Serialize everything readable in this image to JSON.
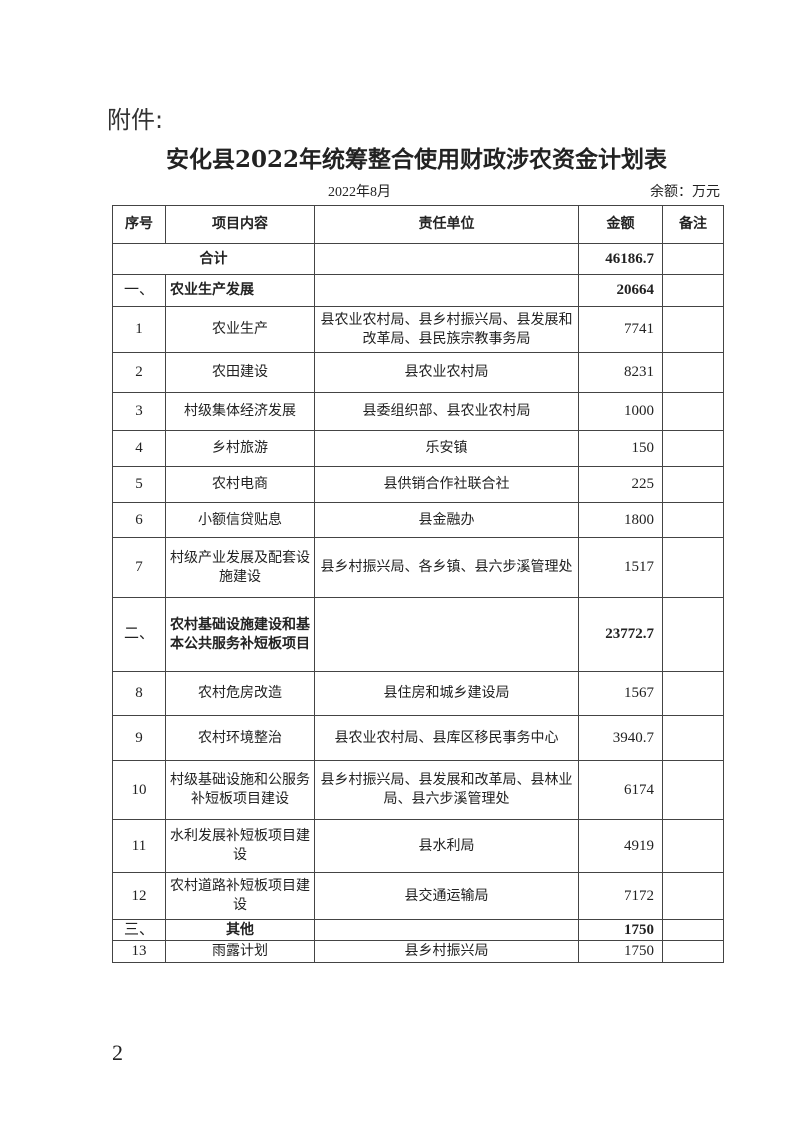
{
  "attachment_label": "附件:",
  "title": "安化县2022年统筹整合使用财政涉农资金计划表",
  "date": "2022年8月",
  "unit": "余额：万元",
  "headers": [
    "序号",
    "项目内容",
    "责任单位",
    "金额",
    "备注"
  ],
  "total": {
    "label": "合计",
    "amount": "46186.7"
  },
  "sections": [
    {
      "seq": "一、",
      "name": "农业生产发展",
      "amount": "20664",
      "rows": [
        {
          "seq": "1",
          "item": "农业生产",
          "unit": "县农业农村局、县乡村振兴局、县发展和改革局、县民族宗教事务局",
          "amount": "7741"
        },
        {
          "seq": "2",
          "item": "农田建设",
          "unit": "县农业农村局",
          "amount": "8231"
        },
        {
          "seq": "3",
          "item": "村级集体经济发展",
          "unit": "县委组织部、县农业农村局",
          "amount": "1000"
        },
        {
          "seq": "4",
          "item": "乡村旅游",
          "unit": "乐安镇",
          "amount": "150"
        },
        {
          "seq": "5",
          "item": "农村电商",
          "unit": "县供销合作社联合社",
          "amount": "225"
        },
        {
          "seq": "6",
          "item": "小额信贷贴息",
          "unit": "县金融办",
          "amount": "1800"
        },
        {
          "seq": "7",
          "item": "村级产业发展及配套设施建设",
          "unit": "县乡村振兴局、各乡镇、县六步溪管理处",
          "amount": "1517"
        }
      ]
    },
    {
      "seq": "二、",
      "name": "农村基础设施建设和基本公共服务补短板项目",
      "amount": "23772.7",
      "rows": [
        {
          "seq": "8",
          "item": "农村危房改造",
          "unit": "县住房和城乡建设局",
          "amount": "1567"
        },
        {
          "seq": "9",
          "item": "农村环境整治",
          "unit": "县农业农村局、县库区移民事务中心",
          "amount": "3940.7"
        },
        {
          "seq": "10",
          "item": "村级基础设施和公服务补短板项目建设",
          "unit": "县乡村振兴局、县发展和改革局、县林业局、县六步溪管理处",
          "amount": "6174"
        },
        {
          "seq": "11",
          "item": "水利发展补短板项目建设",
          "unit": "县水利局",
          "amount": "4919"
        },
        {
          "seq": "12",
          "item": "农村道路补短板项目建设",
          "unit": "县交通运输局",
          "amount": "7172"
        }
      ]
    },
    {
      "seq": "三、",
      "name": "其他",
      "amount": "1750",
      "rows": [
        {
          "seq": "13",
          "item": "雨露计划",
          "unit": "县乡村振兴局",
          "amount": "1750"
        }
      ]
    }
  ],
  "page_number": "2"
}
